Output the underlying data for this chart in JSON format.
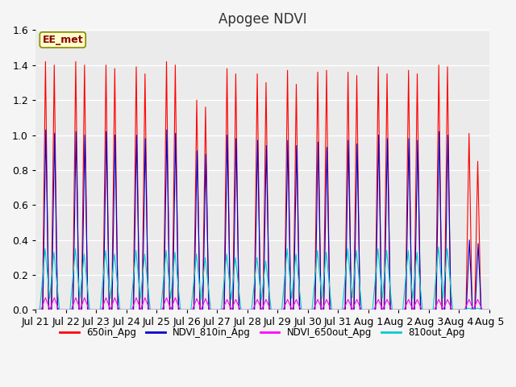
{
  "title": "Apogee NDVI",
  "ylim": [
    0,
    1.6
  ],
  "plot_bg_color": "#ebebeb",
  "fig_bg_color": "#f5f5f5",
  "series": {
    "650in_Apg": {
      "color": "#ff0000",
      "lw": 0.8
    },
    "NDVI_810in_Apg": {
      "color": "#0000cc",
      "lw": 0.8
    },
    "NDVI_650out_Apg": {
      "color": "#ff00ff",
      "lw": 0.8
    },
    "810out_Apg": {
      "color": "#00cccc",
      "lw": 0.8
    }
  },
  "n_days": 15,
  "annotation_text": "EE_met",
  "annotation_bg": "#ffffcc",
  "annotation_border": "#888800",
  "tick_labels": [
    "Jul 21",
    "Jul 22",
    "Jul 23",
    "Jul 24",
    "Jul 25",
    "Jul 26",
    "Jul 27",
    "Jul 28",
    "Jul 29",
    "Jul 30",
    "Jul 31",
    "Aug 1",
    "Aug 2",
    "Aug 3",
    "Aug 4",
    "Aug 5"
  ],
  "peak_650in": [
    1.42,
    1.42,
    1.4,
    1.39,
    1.42,
    1.2,
    1.38,
    1.35,
    1.37,
    1.36,
    1.36,
    1.39,
    1.37,
    1.4,
    1.01
  ],
  "peak_650in_2": [
    1.4,
    1.4,
    1.38,
    1.35,
    1.4,
    1.16,
    1.35,
    1.3,
    1.29,
    1.37,
    1.34,
    1.35,
    1.35,
    1.39,
    0.85
  ],
  "peak_810in": [
    1.03,
    1.02,
    1.02,
    1.0,
    1.03,
    0.91,
    1.0,
    0.97,
    0.97,
    0.96,
    0.97,
    1.0,
    0.98,
    1.02,
    0.4
  ],
  "peak_810in_2": [
    1.01,
    1.0,
    1.0,
    0.98,
    1.01,
    0.89,
    0.98,
    0.94,
    0.94,
    0.93,
    0.95,
    0.98,
    0.97,
    1.0,
    0.38
  ],
  "peak_650out": [
    0.07,
    0.07,
    0.07,
    0.07,
    0.07,
    0.065,
    0.06,
    0.06,
    0.06,
    0.06,
    0.06,
    0.06,
    0.06,
    0.06,
    0.06
  ],
  "peak_650out_2": [
    0.07,
    0.07,
    0.07,
    0.07,
    0.07,
    0.065,
    0.06,
    0.06,
    0.06,
    0.06,
    0.06,
    0.06,
    0.06,
    0.06,
    0.06
  ],
  "peak_810out": [
    0.35,
    0.35,
    0.34,
    0.34,
    0.34,
    0.32,
    0.32,
    0.3,
    0.35,
    0.34,
    0.35,
    0.35,
    0.34,
    0.36,
    0.01
  ],
  "peak_810out_2": [
    0.33,
    0.32,
    0.32,
    0.32,
    0.33,
    0.3,
    0.3,
    0.28,
    0.32,
    0.33,
    0.34,
    0.34,
    0.33,
    0.35,
    0.01
  ],
  "legend_entries": [
    "650in_Apg",
    "NDVI_810in_Apg",
    "NDVI_650out_Apg",
    "810out_Apg"
  ],
  "legend_colors": [
    "#ff0000",
    "#0000cc",
    "#ff00ff",
    "#00cccc"
  ]
}
